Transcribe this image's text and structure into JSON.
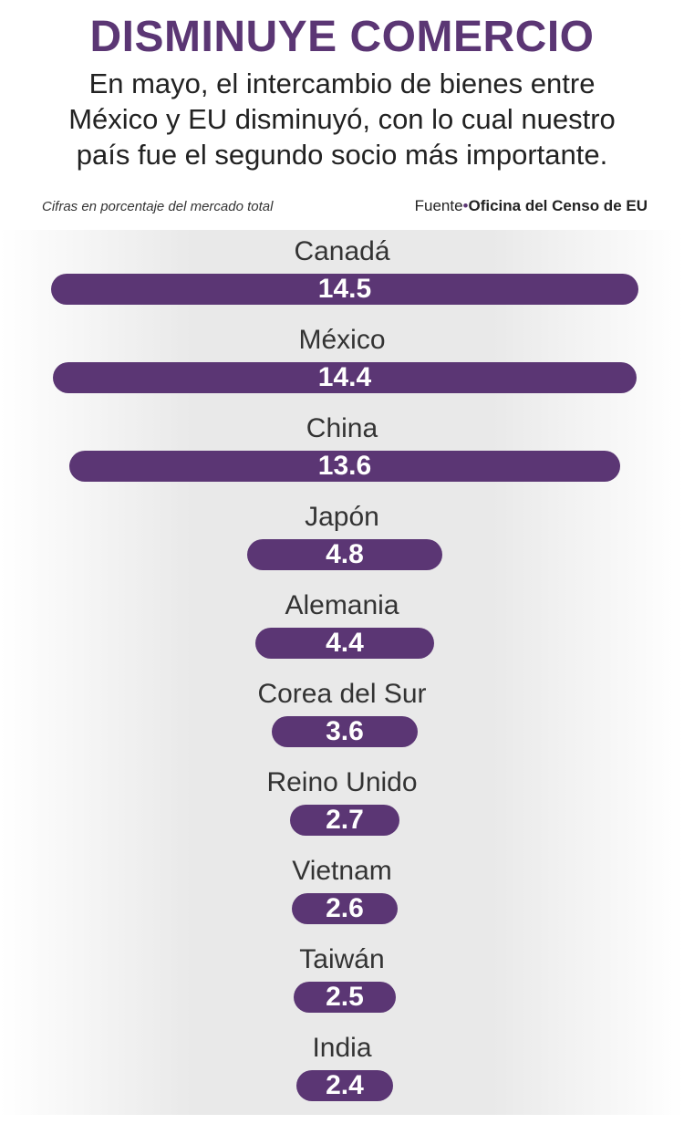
{
  "header": {
    "title": "DISMINUYE COMERCIO",
    "subtitle": "En mayo, el intercambio de bienes entre México y EU disminuyó, con lo cual nuestro país fue el segundo socio más importante.",
    "note": "Cifras en porcentaje del mercado total",
    "source_prefix": "Fuente",
    "source_separator": "•",
    "source_name": "Oficina del Censo de EU"
  },
  "colors": {
    "bar": "#5b3674",
    "title": "#5b3674",
    "stripe": "#e9e9e9"
  },
  "chart_data": {
    "type": "bar",
    "orientation": "horizontal-centered",
    "title": "DISMINUYE COMERCIO",
    "categories": [
      "Canadá",
      "México",
      "China",
      "Japón",
      "Alemania",
      "Corea del Sur",
      "Reino Unido",
      "Vietnam",
      "Taiwán",
      "India"
    ],
    "values": [
      14.5,
      14.4,
      13.6,
      4.8,
      4.4,
      3.6,
      2.7,
      2.6,
      2.5,
      2.4
    ],
    "value_labels": [
      "14.5",
      "14.4",
      "13.6",
      "4.8",
      "4.4",
      "3.6",
      "2.7",
      "2.6",
      "2.5",
      "2.4"
    ],
    "xlabel": "",
    "ylabel": "",
    "grid": false,
    "legend": "none"
  }
}
